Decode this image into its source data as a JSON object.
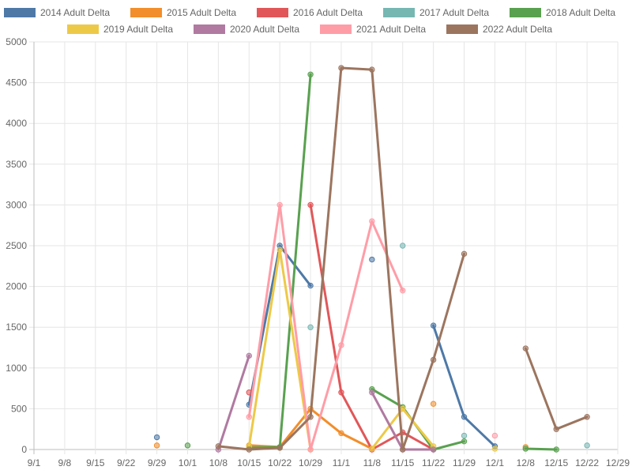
{
  "chart_data": {
    "type": "line",
    "title": "",
    "xlabel": "",
    "ylabel": "",
    "ylim": [
      0,
      5000
    ],
    "y_ticks": [
      0,
      500,
      1000,
      1500,
      2000,
      2500,
      3000,
      3500,
      4000,
      4500,
      5000
    ],
    "categories": [
      "9/1",
      "9/8",
      "9/15",
      "9/22",
      "9/29",
      "10/1",
      "10/8",
      "10/15",
      "10/22",
      "10/29",
      "11/1",
      "11/8",
      "11/15",
      "11/22",
      "11/29",
      "12/1",
      "12/8",
      "12/15",
      "12/22",
      "12/29"
    ],
    "grid": true,
    "legend_position": "top",
    "series": [
      {
        "name": "2014 Adult Delta",
        "color": "#4e79a7",
        "values": [
          null,
          null,
          null,
          null,
          150,
          null,
          null,
          550,
          2500,
          2010,
          null,
          2330,
          null,
          1520,
          400,
          40,
          null,
          null,
          null,
          null
        ]
      },
      {
        "name": "2015 Adult Delta",
        "color": "#f28e2b",
        "values": [
          null,
          null,
          null,
          null,
          50,
          null,
          null,
          50,
          30,
          500,
          200,
          10,
          null,
          560,
          null,
          null,
          30,
          null,
          null,
          null
        ]
      },
      {
        "name": "2016 Adult Delta",
        "color": "#e15759",
        "values": [
          null,
          null,
          null,
          null,
          null,
          null,
          null,
          700,
          null,
          3000,
          700,
          0,
          210,
          0,
          null,
          null,
          null,
          null,
          null,
          null
        ]
      },
      {
        "name": "2017 Adult Delta",
        "color": "#76b7b2",
        "values": [
          null,
          null,
          null,
          null,
          null,
          null,
          null,
          null,
          null,
          1500,
          null,
          null,
          2500,
          null,
          170,
          null,
          null,
          null,
          50,
          null
        ]
      },
      {
        "name": "2018 Adult Delta",
        "color": "#59a14f",
        "values": [
          null,
          null,
          null,
          null,
          null,
          50,
          null,
          20,
          30,
          4600,
          null,
          740,
          520,
          0,
          100,
          null,
          10,
          0,
          null,
          null
        ]
      },
      {
        "name": "2019 Adult Delta",
        "color": "#edc948",
        "values": [
          null,
          null,
          null,
          null,
          null,
          null,
          null,
          40,
          2450,
          0,
          null,
          10,
          500,
          40,
          null,
          10,
          null,
          null,
          null,
          null
        ]
      },
      {
        "name": "2020 Adult Delta",
        "color": "#b07aa1",
        "values": [
          null,
          null,
          null,
          null,
          null,
          null,
          0,
          1150,
          null,
          null,
          null,
          700,
          0,
          0,
          null,
          null,
          null,
          null,
          null,
          null
        ]
      },
      {
        "name": "2021 Adult Delta",
        "color": "#ff9da7",
        "values": [
          null,
          null,
          null,
          null,
          null,
          null,
          null,
          400,
          3000,
          0,
          1280,
          2800,
          1950,
          null,
          null,
          170,
          null,
          null,
          null,
          null
        ]
      },
      {
        "name": "2022 Adult Delta",
        "color": "#9c755f",
        "values": [
          null,
          null,
          null,
          null,
          null,
          null,
          40,
          0,
          20,
          400,
          4680,
          4660,
          0,
          1100,
          2400,
          null,
          1240,
          250,
          400,
          null
        ]
      }
    ]
  }
}
